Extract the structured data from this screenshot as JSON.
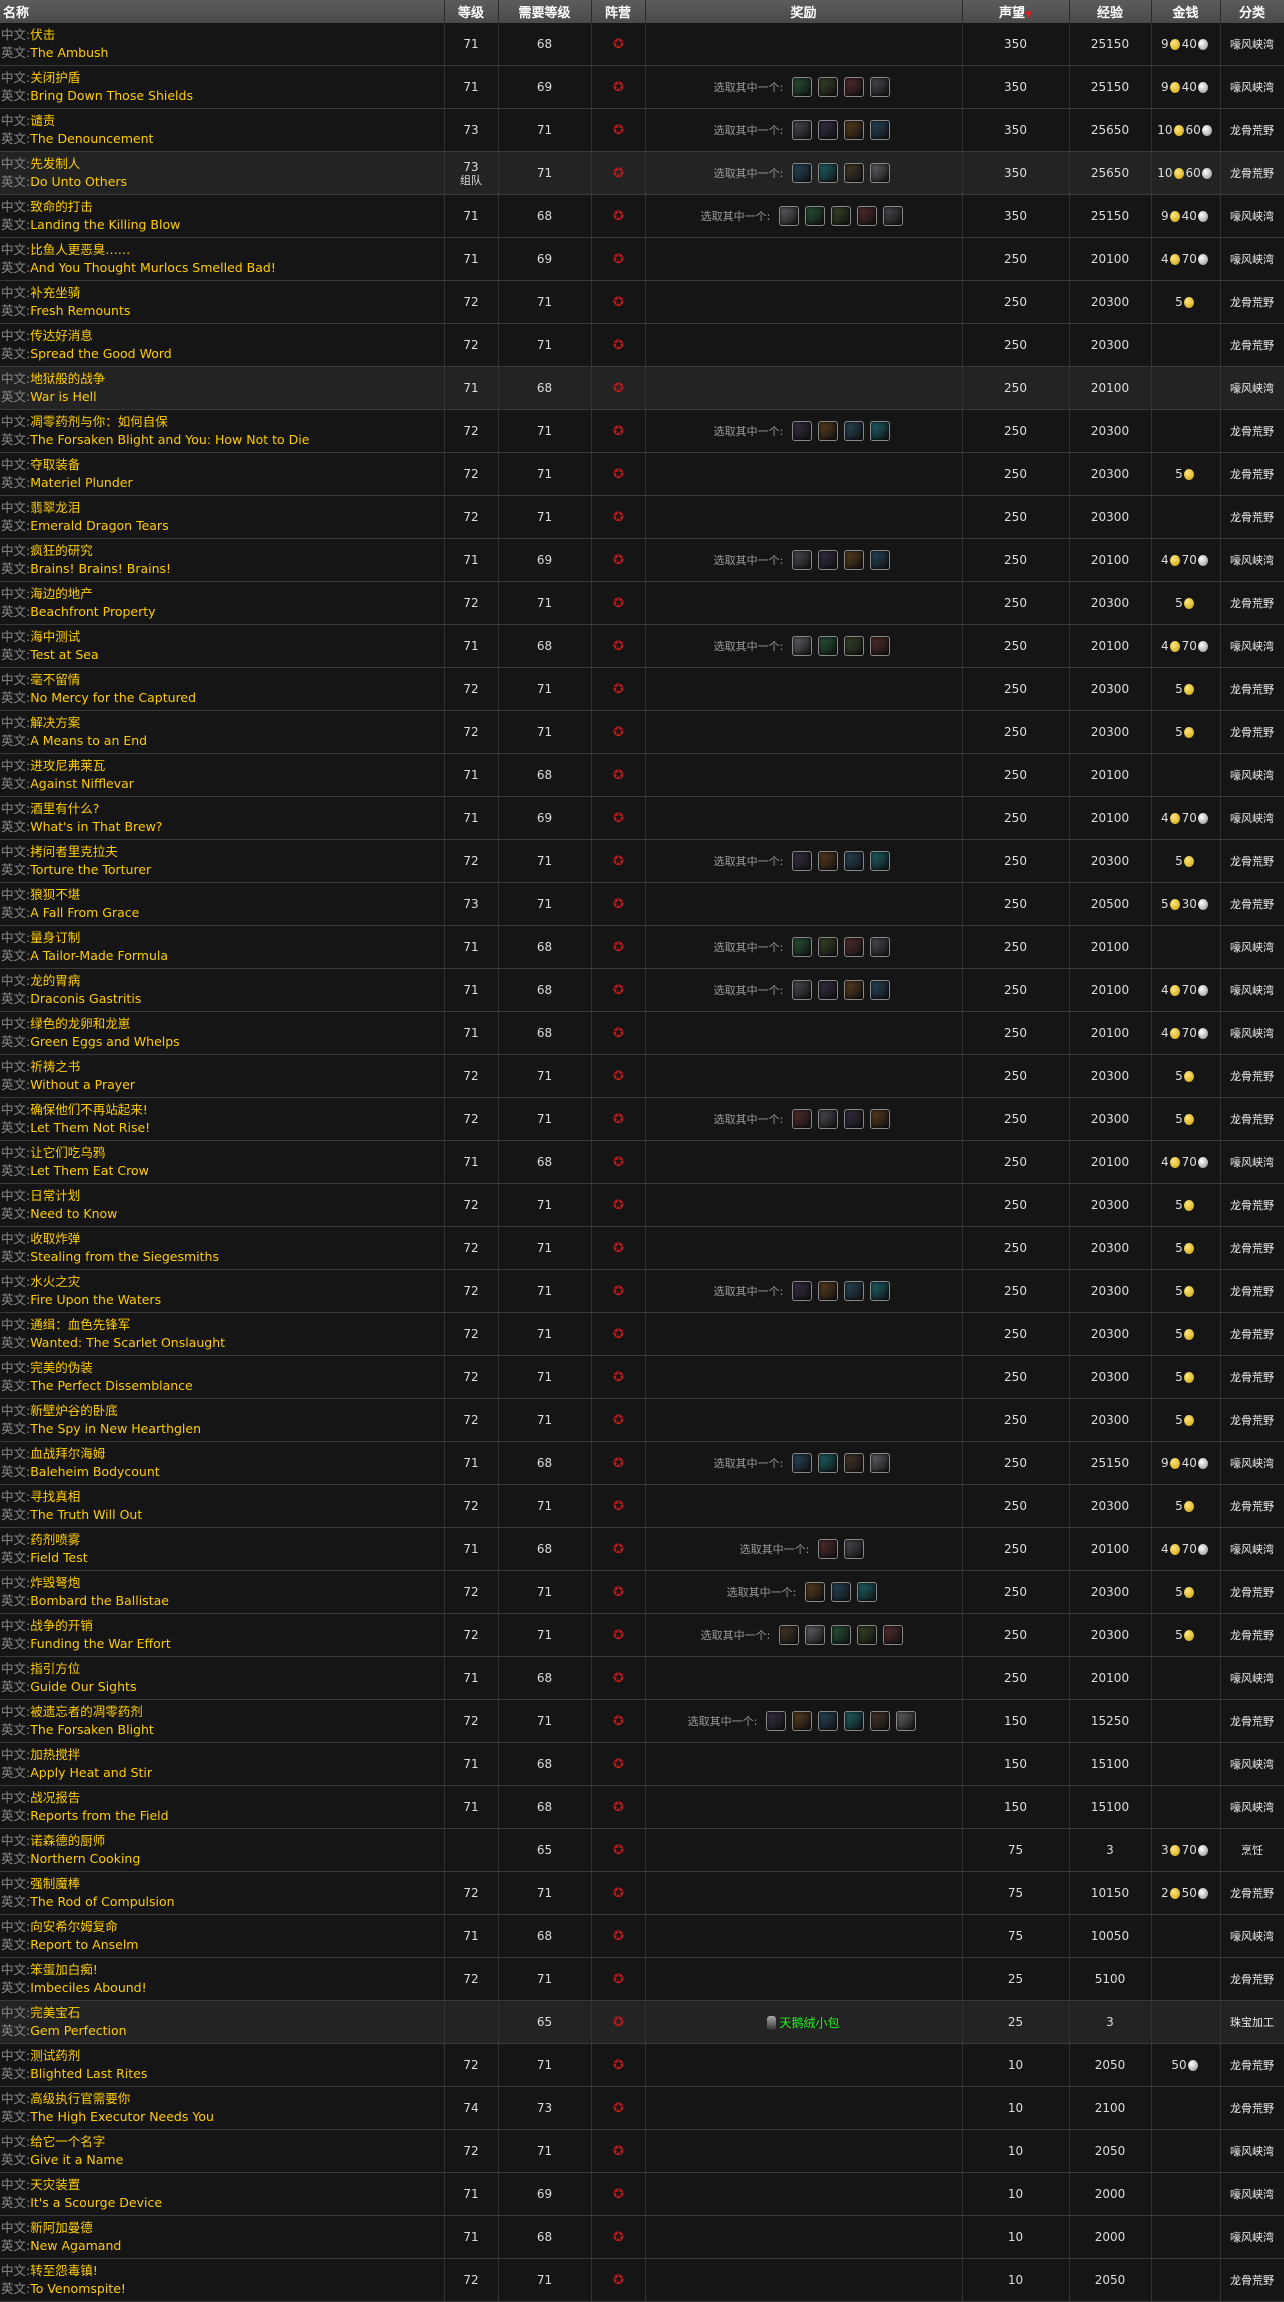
{
  "header": {
    "name": "名称",
    "level": "等级",
    "req_level": "需要等级",
    "faction": "阵营",
    "reward": "奖励",
    "rep": "声望",
    "sort_icon": "triangle-down",
    "exp": "经验",
    "money": "金钱",
    "category": "分类"
  },
  "labels": {
    "cn": "中文:",
    "en": "英文:",
    "choose": "选取其中一个:",
    "group": "组队"
  },
  "colors": {
    "quest_name": "#ffcc00",
    "item_green": "#22ee22",
    "horde": "#c01818"
  },
  "quests": [
    {
      "cn": "伏击",
      "en": "The Ambush",
      "lv": "71",
      "req": "68",
      "icons": 0,
      "rep": 350,
      "exp": 25150,
      "gold": 9,
      "silver": 40,
      "cat": "嚎风峡湾"
    },
    {
      "cn": "关闭护盾",
      "en": "Bring Down Those Shields",
      "lv": "71",
      "req": "69",
      "icons": 4,
      "rep": 350,
      "exp": 25150,
      "gold": 9,
      "silver": 40,
      "cat": "嚎风峡湾"
    },
    {
      "cn": "谴责",
      "en": "The Denouncement",
      "lv": "73",
      "req": "71",
      "icons": 4,
      "rep": 350,
      "exp": 25650,
      "gold": 10,
      "silver": 60,
      "cat": "龙骨荒野"
    },
    {
      "cn": "先发制人",
      "en": "Do Unto Others",
      "lv": "73",
      "group": true,
      "req": "71",
      "icons": 4,
      "rep": 350,
      "exp": 25650,
      "gold": 10,
      "silver": 60,
      "cat": "龙骨荒野",
      "hl": true
    },
    {
      "cn": "致命的打击",
      "en": "Landing the Killing Blow",
      "lv": "71",
      "req": "68",
      "icons": 5,
      "rep": 350,
      "exp": 25150,
      "gold": 9,
      "silver": 40,
      "cat": "嚎风峡湾"
    },
    {
      "cn": "比鱼人更恶臭……",
      "en": "And You Thought Murlocs Smelled Bad!",
      "lv": "71",
      "req": "69",
      "icons": 0,
      "rep": 250,
      "exp": 20100,
      "gold": 4,
      "silver": 70,
      "cat": "嚎风峡湾"
    },
    {
      "cn": "补充坐骑",
      "en": "Fresh Remounts",
      "lv": "72",
      "req": "71",
      "icons": 0,
      "rep": 250,
      "exp": 20300,
      "gold": 5,
      "cat": "龙骨荒野"
    },
    {
      "cn": "传达好消息",
      "en": "Spread the Good Word",
      "lv": "72",
      "req": "71",
      "icons": 0,
      "rep": 250,
      "exp": 20300,
      "cat": "龙骨荒野"
    },
    {
      "cn": "地狱般的战争",
      "en": "War is Hell",
      "lv": "71",
      "req": "68",
      "icons": 0,
      "rep": 250,
      "exp": 20100,
      "cat": "嚎风峡湾",
      "hl": true
    },
    {
      "cn": "凋零药剂与你：如何自保",
      "en": "The Forsaken Blight and You: How Not to Die",
      "lv": "72",
      "req": "71",
      "icons": 4,
      "rep": 250,
      "exp": 20300,
      "cat": "龙骨荒野"
    },
    {
      "cn": "夺取装备",
      "en": "Materiel Plunder",
      "lv": "72",
      "req": "71",
      "icons": 0,
      "rep": 250,
      "exp": 20300,
      "gold": 5,
      "cat": "龙骨荒野"
    },
    {
      "cn": "翡翠龙泪",
      "en": "Emerald Dragon Tears",
      "lv": "72",
      "req": "71",
      "icons": 0,
      "rep": 250,
      "exp": 20300,
      "cat": "龙骨荒野"
    },
    {
      "cn": "疯狂的研究",
      "en": "Brains! Brains! Brains!",
      "lv": "71",
      "req": "69",
      "icons": 4,
      "rep": 250,
      "exp": 20100,
      "gold": 4,
      "silver": 70,
      "cat": "嚎风峡湾"
    },
    {
      "cn": "海边的地产",
      "en": "Beachfront Property",
      "lv": "72",
      "req": "71",
      "icons": 0,
      "rep": 250,
      "exp": 20300,
      "gold": 5,
      "cat": "龙骨荒野"
    },
    {
      "cn": "海中测试",
      "en": "Test at Sea",
      "lv": "71",
      "req": "68",
      "icons": 4,
      "rep": 250,
      "exp": 20100,
      "gold": 4,
      "silver": 70,
      "cat": "嚎风峡湾"
    },
    {
      "cn": "毫不留情",
      "en": "No Mercy for the Captured",
      "lv": "72",
      "req": "71",
      "icons": 0,
      "rep": 250,
      "exp": 20300,
      "gold": 5,
      "cat": "龙骨荒野"
    },
    {
      "cn": "解决方案",
      "en": "A Means to an End",
      "lv": "72",
      "req": "71",
      "icons": 0,
      "rep": 250,
      "exp": 20300,
      "gold": 5,
      "cat": "龙骨荒野"
    },
    {
      "cn": "进攻尼弗莱瓦",
      "en": "Against Nifflevar",
      "lv": "71",
      "req": "68",
      "icons": 0,
      "rep": 250,
      "exp": 20100,
      "cat": "嚎风峡湾"
    },
    {
      "cn": "酒里有什么?",
      "en": "What's in That Brew?",
      "lv": "71",
      "req": "69",
      "icons": 0,
      "rep": 250,
      "exp": 20100,
      "gold": 4,
      "silver": 70,
      "cat": "嚎风峡湾"
    },
    {
      "cn": "拷问者里克拉夫",
      "en": "Torture the Torturer",
      "lv": "72",
      "req": "71",
      "icons": 4,
      "rep": 250,
      "exp": 20300,
      "gold": 5,
      "cat": "龙骨荒野"
    },
    {
      "cn": "狼狈不堪",
      "en": "A Fall From Grace",
      "lv": "73",
      "req": "71",
      "icons": 0,
      "rep": 250,
      "exp": 20500,
      "gold": 5,
      "silver": 30,
      "cat": "龙骨荒野"
    },
    {
      "cn": "量身订制",
      "en": "A Tailor-Made Formula",
      "lv": "71",
      "req": "68",
      "icons": 4,
      "rep": 250,
      "exp": 20100,
      "cat": "嚎风峡湾"
    },
    {
      "cn": "龙的胃病",
      "en": "Draconis Gastritis",
      "lv": "71",
      "req": "68",
      "icons": 4,
      "rep": 250,
      "exp": 20100,
      "gold": 4,
      "silver": 70,
      "cat": "嚎风峡湾"
    },
    {
      "cn": "绿色的龙卵和龙崽",
      "en": "Green Eggs and Whelps",
      "lv": "71",
      "req": "68",
      "icons": 0,
      "rep": 250,
      "exp": 20100,
      "gold": 4,
      "silver": 70,
      "cat": "嚎风峡湾"
    },
    {
      "cn": "祈祷之书",
      "en": "Without a Prayer",
      "lv": "72",
      "req": "71",
      "icons": 0,
      "rep": 250,
      "exp": 20300,
      "gold": 5,
      "cat": "龙骨荒野"
    },
    {
      "cn": "确保他们不再站起来!",
      "en": "Let Them Not Rise!",
      "lv": "72",
      "req": "71",
      "icons": 4,
      "rep": 250,
      "exp": 20300,
      "gold": 5,
      "cat": "龙骨荒野"
    },
    {
      "cn": "让它们吃乌鸦",
      "en": "Let Them Eat Crow",
      "lv": "71",
      "req": "68",
      "icons": 0,
      "rep": 250,
      "exp": 20100,
      "gold": 4,
      "silver": 70,
      "cat": "嚎风峡湾"
    },
    {
      "cn": "日常计划",
      "en": "Need to Know",
      "lv": "72",
      "req": "71",
      "icons": 0,
      "rep": 250,
      "exp": 20300,
      "gold": 5,
      "cat": "龙骨荒野"
    },
    {
      "cn": "收取炸弹",
      "en": "Stealing from the Siegesmiths",
      "lv": "72",
      "req": "71",
      "icons": 0,
      "rep": 250,
      "exp": 20300,
      "gold": 5,
      "cat": "龙骨荒野"
    },
    {
      "cn": "水火之灾",
      "en": "Fire Upon the Waters",
      "lv": "72",
      "req": "71",
      "icons": 4,
      "rep": 250,
      "exp": 20300,
      "gold": 5,
      "cat": "龙骨荒野"
    },
    {
      "cn": "通缉：血色先锋军",
      "en": "Wanted: The Scarlet Onslaught",
      "lv": "72",
      "req": "71",
      "icons": 0,
      "rep": 250,
      "exp": 20300,
      "gold": 5,
      "cat": "龙骨荒野"
    },
    {
      "cn": "完美的伪装",
      "en": "The Perfect Dissemblance",
      "lv": "72",
      "req": "71",
      "icons": 0,
      "rep": 250,
      "exp": 20300,
      "gold": 5,
      "cat": "龙骨荒野"
    },
    {
      "cn": "新壁炉谷的卧底",
      "en": "The Spy in New Hearthglen",
      "lv": "72",
      "req": "71",
      "icons": 0,
      "rep": 250,
      "exp": 20300,
      "gold": 5,
      "cat": "龙骨荒野"
    },
    {
      "cn": "血战拜尔海姆",
      "en": "Baleheim Bodycount",
      "lv": "71",
      "req": "68",
      "icons": 4,
      "rep": 250,
      "exp": 25150,
      "gold": 9,
      "silver": 40,
      "cat": "嚎风峡湾"
    },
    {
      "cn": "寻找真相",
      "en": "The Truth Will Out",
      "lv": "72",
      "req": "71",
      "icons": 0,
      "rep": 250,
      "exp": 20300,
      "gold": 5,
      "cat": "龙骨荒野"
    },
    {
      "cn": "药剂喷雾",
      "en": "Field Test",
      "lv": "71",
      "req": "68",
      "icons": 2,
      "rep": 250,
      "exp": 20100,
      "gold": 4,
      "silver": 70,
      "cat": "嚎风峡湾"
    },
    {
      "cn": "炸毁弩炮",
      "en": "Bombard the Ballistae",
      "lv": "72",
      "req": "71",
      "icons": 3,
      "rep": 250,
      "exp": 20300,
      "gold": 5,
      "cat": "龙骨荒野"
    },
    {
      "cn": "战争的开销",
      "en": "Funding the War Effort",
      "lv": "72",
      "req": "71",
      "icons": 5,
      "rep": 250,
      "exp": 20300,
      "gold": 5,
      "cat": "龙骨荒野"
    },
    {
      "cn": "指引方位",
      "en": "Guide Our Sights",
      "lv": "71",
      "req": "68",
      "icons": 0,
      "rep": 250,
      "exp": 20100,
      "cat": "嚎风峡湾"
    },
    {
      "cn": "被遗忘者的凋零药剂",
      "en": "The Forsaken Blight",
      "lv": "72",
      "req": "71",
      "icons": 6,
      "rep": 150,
      "exp": 15250,
      "cat": "龙骨荒野"
    },
    {
      "cn": "加热搅拌",
      "en": "Apply Heat and Stir",
      "lv": "71",
      "req": "68",
      "icons": 0,
      "rep": 150,
      "exp": 15100,
      "cat": "嚎风峡湾"
    },
    {
      "cn": "战况报告",
      "en": "Reports from the Field",
      "lv": "71",
      "req": "68",
      "icons": 0,
      "rep": 150,
      "exp": 15100,
      "cat": "嚎风峡湾"
    },
    {
      "cn": "诺森德的厨师",
      "en": "Northern Cooking",
      "lv": "",
      "req": "65",
      "icons": 0,
      "rep": 75,
      "exp": 3,
      "gold": 3,
      "silver": 70,
      "cat": "烹饪"
    },
    {
      "cn": "强制魔棒",
      "en": "The Rod of Compulsion",
      "lv": "72",
      "req": "71",
      "icons": 0,
      "rep": 75,
      "exp": 10150,
      "gold": 2,
      "silver": 50,
      "cat": "龙骨荒野"
    },
    {
      "cn": "向安希尔姆复命",
      "en": "Report to Anselm",
      "lv": "71",
      "req": "68",
      "icons": 0,
      "rep": 75,
      "exp": 10050,
      "cat": "嚎风峡湾"
    },
    {
      "cn": "笨蛋加白痴!",
      "en": "Imbeciles Abound!",
      "lv": "72",
      "req": "71",
      "icons": 0,
      "rep": 25,
      "exp": 5100,
      "cat": "龙骨荒野"
    },
    {
      "cn": "完美宝石",
      "en": "Gem Perfection",
      "lv": "",
      "req": "65",
      "icons": 0,
      "item": "天鹅绒小包",
      "rep": 25,
      "exp": 3,
      "cat": "珠宝加工",
      "hl": true
    },
    {
      "cn": "测试药剂",
      "en": "Blighted Last Rites",
      "lv": "72",
      "req": "71",
      "icons": 0,
      "rep": 10,
      "exp": 2050,
      "silver": 50,
      "cat": "龙骨荒野"
    },
    {
      "cn": "高级执行官需要你",
      "en": "The High Executor Needs You",
      "lv": "74",
      "req": "73",
      "icons": 0,
      "rep": 10,
      "exp": 2100,
      "cat": "龙骨荒野"
    },
    {
      "cn": "给它一个名字",
      "en": "Give it a Name",
      "lv": "72",
      "req": "71",
      "icons": 0,
      "rep": 10,
      "exp": 2050,
      "cat": "嚎风峡湾"
    },
    {
      "cn": "天灾装置",
      "en": "It's a Scourge Device",
      "lv": "71",
      "req": "69",
      "icons": 0,
      "rep": 10,
      "exp": 2000,
      "cat": "嚎风峡湾"
    },
    {
      "cn": "新阿加曼德",
      "en": "New Agamand",
      "lv": "71",
      "req": "68",
      "icons": 0,
      "rep": 10,
      "exp": 2000,
      "cat": "嚎风峡湾"
    },
    {
      "cn": "转至怨毒镇!",
      "en": "To Venomspite!",
      "lv": "72",
      "req": "71",
      "icons": 0,
      "rep": 10,
      "exp": 2050,
      "cat": "龙骨荒野"
    }
  ]
}
